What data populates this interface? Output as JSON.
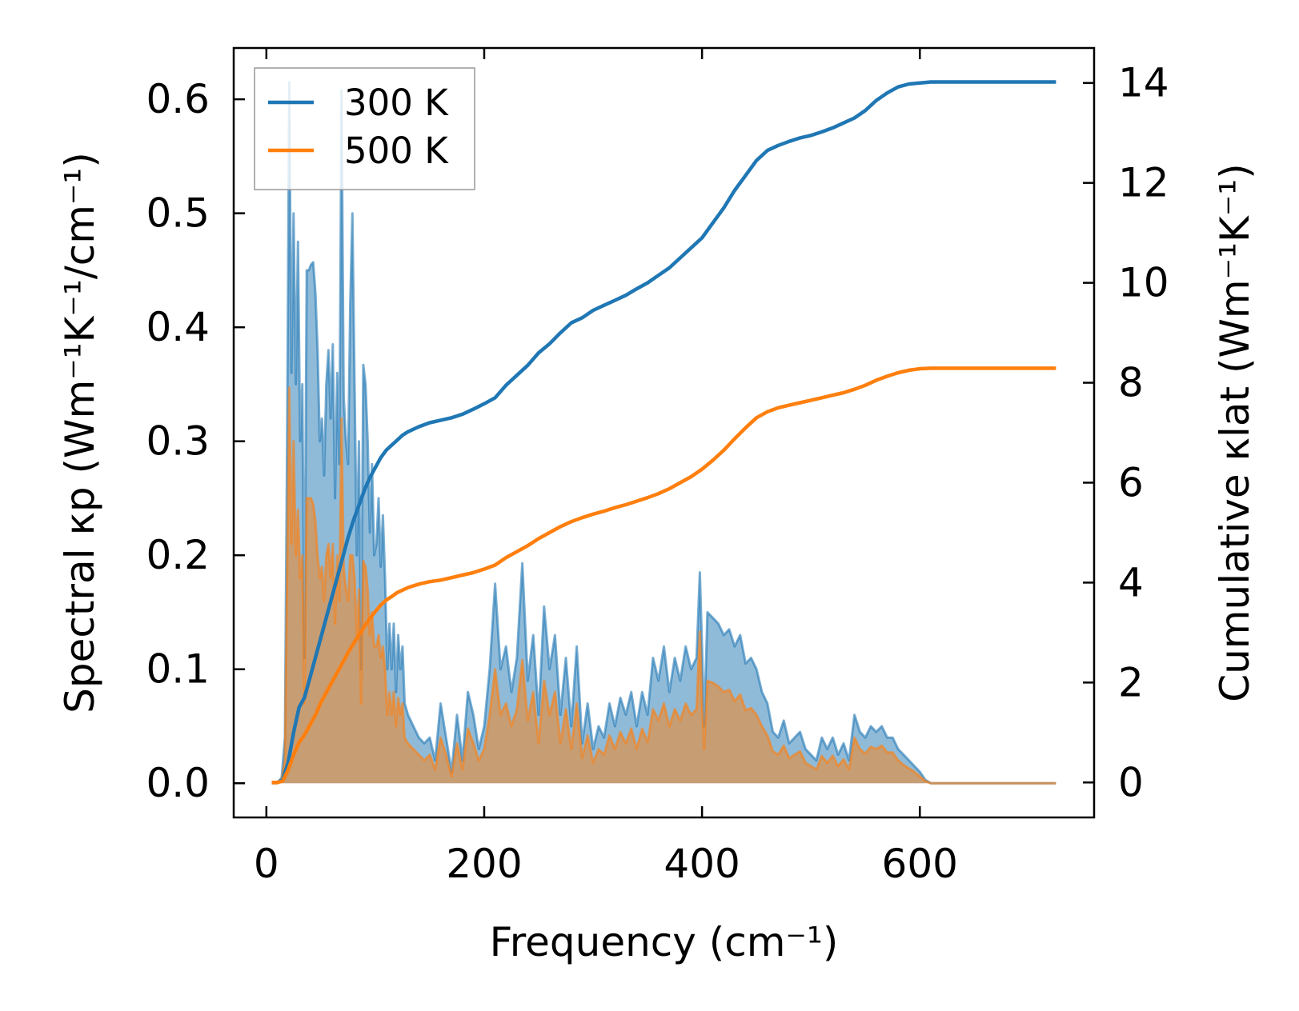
{
  "chart_data": {
    "type": "area",
    "xlabel": "Frequency (cm⁻¹)",
    "ylabel_left": "Spectral κp (Wm⁻¹K⁻¹/cm⁻¹)",
    "ylabel_right": "Cumulative κlat (Wm⁻¹K⁻¹)",
    "xlim": [
      -30,
      760
    ],
    "ylim_left": [
      -0.03,
      0.645
    ],
    "ylim_right": [
      -0.7,
      14.7
    ],
    "x_ticks": [
      0,
      200,
      400,
      600
    ],
    "y_ticks_left": [
      0.0,
      0.1,
      0.2,
      0.3,
      0.4,
      0.5,
      0.6
    ],
    "y_tick_labels_left": [
      "0.0",
      "0.1",
      "0.2",
      "0.3",
      "0.4",
      "0.5",
      "0.6"
    ],
    "y_ticks_right": [
      0,
      2,
      4,
      6,
      8,
      10,
      12,
      14
    ],
    "legend_position": "top-left",
    "grid": false,
    "colors": {
      "300K": "#1f77b4",
      "500K": "#ff7f0e"
    },
    "series": [
      {
        "name": "300 K",
        "color": "#1f77b4",
        "spectral": {
          "x": [
            5,
            10,
            14,
            17,
            19,
            21,
            23,
            25,
            27,
            29,
            31,
            33,
            35,
            37,
            39,
            41,
            43,
            45,
            47,
            49,
            51,
            53,
            55,
            57,
            59,
            61,
            63,
            65,
            67,
            69,
            71,
            73,
            75,
            77,
            79,
            81,
            83,
            85,
            87,
            89,
            91,
            93,
            95,
            97,
            99,
            101,
            103,
            105,
            107,
            109,
            111,
            113,
            115,
            117,
            119,
            121,
            123,
            125,
            127,
            130,
            135,
            140,
            145,
            150,
            155,
            160,
            165,
            170,
            175,
            180,
            185,
            190,
            195,
            200,
            205,
            210,
            215,
            220,
            225,
            230,
            235,
            240,
            245,
            250,
            255,
            260,
            265,
            270,
            275,
            280,
            285,
            290,
            295,
            300,
            305,
            310,
            315,
            320,
            325,
            330,
            335,
            340,
            345,
            350,
            355,
            360,
            365,
            370,
            375,
            380,
            385,
            390,
            395,
            398,
            400,
            402,
            405,
            410,
            415,
            420,
            425,
            430,
            435,
            440,
            445,
            450,
            455,
            460,
            465,
            470,
            475,
            480,
            485,
            490,
            495,
            500,
            505,
            510,
            515,
            520,
            525,
            530,
            535,
            540,
            545,
            550,
            555,
            560,
            565,
            570,
            575,
            580,
            585,
            590,
            595,
            600,
            605,
            610,
            620,
            650,
            700,
            725
          ],
          "y": [
            0,
            0,
            0.005,
            0.04,
            0.3,
            0.615,
            0.36,
            0.5,
            0.35,
            0.475,
            0.3,
            0.35,
            0.11,
            0.45,
            0.45,
            0.455,
            0.457,
            0.43,
            0.38,
            0.3,
            0.32,
            0.27,
            0.35,
            0.38,
            0.32,
            0.385,
            0.25,
            0.36,
            0.28,
            0.608,
            0.34,
            0.3,
            0.28,
            0.42,
            0.5,
            0.35,
            0.2,
            0.3,
            0.1,
            0.367,
            0.35,
            0.3,
            0.22,
            0.28,
            0.2,
            0.21,
            0.25,
            0.19,
            0.235,
            0.18,
            0.1,
            0.14,
            0.1,
            0.14,
            0.08,
            0.13,
            0.1,
            0.12,
            0.07,
            0.06,
            0.05,
            0.04,
            0.035,
            0.04,
            0.02,
            0.07,
            0.04,
            0.01,
            0.06,
            0.02,
            0.08,
            0.06,
            0.03,
            0.05,
            0.1,
            0.175,
            0.1,
            0.12,
            0.08,
            0.11,
            0.193,
            0.09,
            0.13,
            0.06,
            0.155,
            0.1,
            0.13,
            0.06,
            0.11,
            0.05,
            0.12,
            0.035,
            0.07,
            0.03,
            0.05,
            0.04,
            0.07,
            0.05,
            0.075,
            0.06,
            0.08,
            0.05,
            0.08,
            0.06,
            0.11,
            0.09,
            0.12,
            0.08,
            0.11,
            0.09,
            0.12,
            0.1,
            0.11,
            0.185,
            0.12,
            0.05,
            0.15,
            0.145,
            0.14,
            0.13,
            0.135,
            0.12,
            0.13,
            0.105,
            0.11,
            0.1,
            0.08,
            0.07,
            0.045,
            0.04,
            0.055,
            0.035,
            0.04,
            0.045,
            0.03,
            0.025,
            0.02,
            0.04,
            0.03,
            0.04,
            0.025,
            0.035,
            0.02,
            0.06,
            0.045,
            0.04,
            0.05,
            0.045,
            0.05,
            0.04,
            0.04,
            0.03,
            0.025,
            0.02,
            0.015,
            0.01,
            0.003,
            0,
            0,
            0,
            0,
            0
          ]
        },
        "cumulative": {
          "x": [
            5,
            10,
            15,
            20,
            25,
            30,
            35,
            40,
            45,
            50,
            55,
            60,
            65,
            70,
            75,
            80,
            85,
            90,
            95,
            100,
            105,
            110,
            115,
            120,
            125,
            130,
            140,
            150,
            160,
            170,
            180,
            190,
            200,
            210,
            220,
            230,
            240,
            250,
            260,
            270,
            280,
            290,
            300,
            310,
            320,
            330,
            340,
            350,
            360,
            370,
            380,
            390,
            400,
            410,
            420,
            430,
            440,
            450,
            460,
            470,
            480,
            490,
            500,
            510,
            520,
            530,
            540,
            550,
            560,
            570,
            580,
            590,
            600,
            610,
            620,
            650,
            700,
            725
          ],
          "y": [
            0,
            0,
            0.05,
            0.4,
            1.0,
            1.5,
            1.7,
            2.1,
            2.5,
            2.9,
            3.3,
            3.7,
            4.1,
            4.5,
            4.9,
            5.25,
            5.55,
            5.85,
            6.1,
            6.3,
            6.5,
            6.65,
            6.75,
            6.85,
            6.95,
            7.02,
            7.12,
            7.2,
            7.25,
            7.3,
            7.37,
            7.47,
            7.58,
            7.7,
            7.95,
            8.15,
            8.35,
            8.6,
            8.78,
            9.0,
            9.2,
            9.3,
            9.45,
            9.55,
            9.65,
            9.75,
            9.88,
            10.0,
            10.15,
            10.3,
            10.5,
            10.7,
            10.9,
            11.2,
            11.5,
            11.85,
            12.15,
            12.45,
            12.65,
            12.75,
            12.83,
            12.9,
            12.95,
            13.02,
            13.1,
            13.2,
            13.3,
            13.45,
            13.65,
            13.8,
            13.92,
            13.98,
            14.0,
            14.02,
            14.02,
            14.02,
            14.02,
            14.02
          ]
        }
      },
      {
        "name": "500 K",
        "color": "#ff7f0e",
        "spectral": {
          "x": [
            5,
            10,
            14,
            17,
            19,
            21,
            23,
            25,
            27,
            29,
            31,
            33,
            35,
            37,
            39,
            41,
            43,
            45,
            47,
            49,
            51,
            53,
            55,
            57,
            59,
            61,
            63,
            65,
            67,
            69,
            71,
            73,
            75,
            77,
            79,
            81,
            83,
            85,
            87,
            89,
            91,
            93,
            95,
            97,
            99,
            101,
            103,
            105,
            107,
            109,
            111,
            113,
            115,
            117,
            119,
            121,
            123,
            125,
            127,
            130,
            135,
            140,
            145,
            150,
            155,
            160,
            165,
            170,
            175,
            180,
            185,
            190,
            195,
            200,
            205,
            210,
            215,
            220,
            225,
            230,
            235,
            240,
            245,
            250,
            255,
            260,
            265,
            270,
            275,
            280,
            285,
            290,
            295,
            300,
            305,
            310,
            315,
            320,
            325,
            330,
            335,
            340,
            345,
            350,
            355,
            360,
            365,
            370,
            375,
            380,
            385,
            390,
            395,
            398,
            400,
            402,
            405,
            410,
            415,
            420,
            425,
            430,
            435,
            440,
            445,
            450,
            455,
            460,
            465,
            470,
            475,
            480,
            485,
            490,
            495,
            500,
            505,
            510,
            515,
            520,
            525,
            530,
            535,
            540,
            545,
            550,
            555,
            560,
            565,
            570,
            575,
            580,
            585,
            590,
            595,
            600,
            605,
            610,
            620,
            650,
            700,
            725
          ],
          "y": [
            0,
            0,
            0.003,
            0.02,
            0.18,
            0.347,
            0.21,
            0.3,
            0.2,
            0.24,
            0.18,
            0.2,
            0.07,
            0.25,
            0.25,
            0.25,
            0.245,
            0.23,
            0.2,
            0.18,
            0.19,
            0.16,
            0.2,
            0.21,
            0.18,
            0.21,
            0.14,
            0.2,
            0.16,
            0.32,
            0.19,
            0.17,
            0.16,
            0.2,
            0.2,
            0.18,
            0.13,
            0.17,
            0.07,
            0.195,
            0.19,
            0.17,
            0.13,
            0.15,
            0.12,
            0.12,
            0.13,
            0.11,
            0.12,
            0.1,
            0.06,
            0.08,
            0.06,
            0.08,
            0.05,
            0.075,
            0.06,
            0.07,
            0.04,
            0.035,
            0.03,
            0.025,
            0.02,
            0.025,
            0.012,
            0.04,
            0.025,
            0.006,
            0.035,
            0.012,
            0.048,
            0.035,
            0.02,
            0.03,
            0.06,
            0.1,
            0.06,
            0.07,
            0.05,
            0.065,
            0.108,
            0.055,
            0.08,
            0.035,
            0.09,
            0.06,
            0.08,
            0.035,
            0.065,
            0.03,
            0.07,
            0.022,
            0.042,
            0.018,
            0.03,
            0.025,
            0.042,
            0.03,
            0.045,
            0.035,
            0.048,
            0.03,
            0.048,
            0.036,
            0.065,
            0.055,
            0.07,
            0.05,
            0.065,
            0.055,
            0.07,
            0.06,
            0.065,
            0.133,
            0.07,
            0.03,
            0.09,
            0.088,
            0.085,
            0.08,
            0.082,
            0.072,
            0.078,
            0.064,
            0.066,
            0.06,
            0.05,
            0.042,
            0.028,
            0.025,
            0.033,
            0.022,
            0.025,
            0.028,
            0.018,
            0.015,
            0.012,
            0.024,
            0.018,
            0.024,
            0.015,
            0.021,
            0.012,
            0.04,
            0.03,
            0.026,
            0.032,
            0.03,
            0.033,
            0.027,
            0.027,
            0.02,
            0.016,
            0.013,
            0.01,
            0.006,
            0.002,
            0,
            0,
            0,
            0,
            0
          ]
        },
        "cumulative": {
          "x": [
            5,
            10,
            15,
            20,
            25,
            30,
            35,
            40,
            45,
            50,
            55,
            60,
            65,
            70,
            75,
            80,
            85,
            90,
            95,
            100,
            105,
            110,
            115,
            120,
            125,
            130,
            140,
            150,
            160,
            170,
            180,
            190,
            200,
            210,
            220,
            230,
            240,
            250,
            260,
            270,
            280,
            290,
            300,
            310,
            320,
            330,
            340,
            350,
            360,
            370,
            380,
            390,
            400,
            410,
            420,
            430,
            440,
            450,
            460,
            470,
            480,
            490,
            500,
            510,
            520,
            530,
            540,
            550,
            560,
            570,
            580,
            590,
            600,
            610,
            620,
            650,
            700,
            725
          ],
          "y": [
            0,
            0,
            0.03,
            0.25,
            0.55,
            0.8,
            0.95,
            1.15,
            1.35,
            1.6,
            1.8,
            2.0,
            2.2,
            2.4,
            2.6,
            2.78,
            2.95,
            3.12,
            3.28,
            3.42,
            3.55,
            3.65,
            3.72,
            3.8,
            3.85,
            3.9,
            3.97,
            4.02,
            4.05,
            4.1,
            4.15,
            4.2,
            4.27,
            4.35,
            4.5,
            4.62,
            4.74,
            4.88,
            5.0,
            5.12,
            5.22,
            5.3,
            5.37,
            5.43,
            5.5,
            5.56,
            5.63,
            5.7,
            5.78,
            5.88,
            6.0,
            6.12,
            6.27,
            6.45,
            6.65,
            6.88,
            7.1,
            7.3,
            7.42,
            7.5,
            7.55,
            7.6,
            7.65,
            7.7,
            7.75,
            7.8,
            7.87,
            7.95,
            8.05,
            8.13,
            8.2,
            8.25,
            8.28,
            8.29,
            8.29,
            8.29,
            8.29,
            8.29
          ]
        }
      }
    ]
  }
}
